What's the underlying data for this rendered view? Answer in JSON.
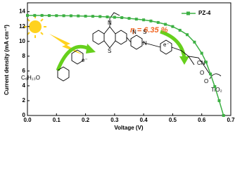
{
  "chart_data": {
    "type": "line",
    "x_label": "Voltage (V)",
    "y_label": "Current density (mA cm⁻²)",
    "x": [
      0,
      0.025,
      0.05,
      0.075,
      0.1,
      0.125,
      0.15,
      0.175,
      0.2,
      0.225,
      0.25,
      0.275,
      0.3,
      0.325,
      0.35,
      0.375,
      0.4,
      0.425,
      0.45,
      0.475,
      0.5,
      0.525,
      0.55,
      0.575,
      0.6,
      0.615,
      0.63,
      0.645,
      0.66,
      0.675
    ],
    "series": [
      {
        "name": "PZ-4",
        "color": "#3cb043",
        "values": [
          13.5,
          13.5,
          13.5,
          13.48,
          13.47,
          13.46,
          13.45,
          13.43,
          13.4,
          13.38,
          13.35,
          13.3,
          13.25,
          13.2,
          13.1,
          13.0,
          12.9,
          12.75,
          12.55,
          12.3,
          12.0,
          11.5,
          10.9,
          9.9,
          8.4,
          7.2,
          5.6,
          3.9,
          2.0,
          0
        ]
      }
    ],
    "xlim": [
      0,
      0.7
    ],
    "xticks": [
      {
        "value": 0,
        "label": "0.0"
      },
      0.1,
      0.2,
      0.3,
      0.4,
      0.5,
      0.6,
      0.7
    ],
    "ylim": [
      0,
      15.2
    ],
    "yticks": [
      0,
      2,
      4,
      6,
      8,
      10,
      12,
      14
    ],
    "legend": "top-right",
    "annotations": [
      "η = 6.35 %",
      "e⁻",
      "e⁻",
      "N",
      "S",
      "N",
      "S",
      "N",
      "CN",
      "O",
      "O",
      "C₆H₁₃O",
      "TiO₂"
    ]
  }
}
